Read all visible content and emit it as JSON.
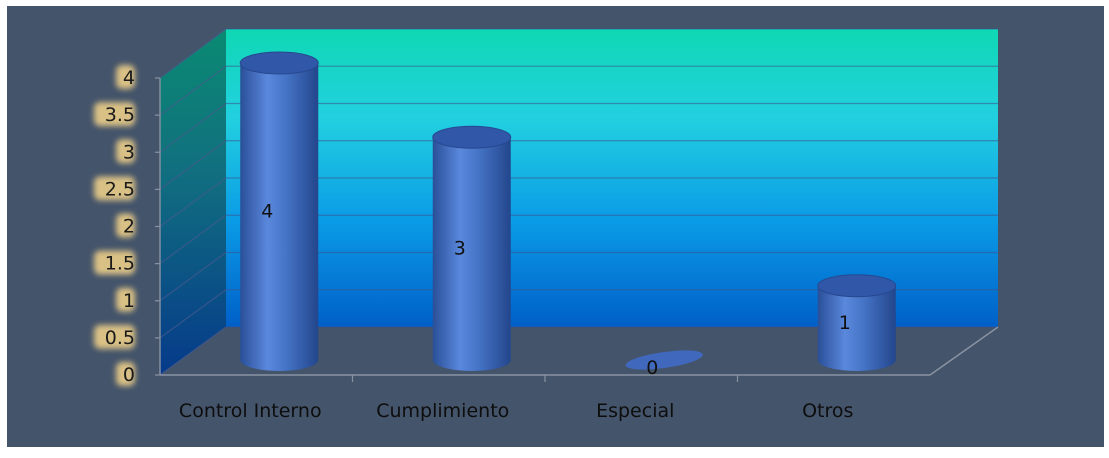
{
  "chart_data": {
    "type": "bar",
    "style": "3d-cylinder",
    "categories": [
      "Control Interno",
      "Cumplimiento",
      "Especial",
      "Otros"
    ],
    "values": [
      4,
      3,
      0,
      1
    ],
    "data_labels": [
      "4",
      "3",
      "0",
      "1"
    ],
    "ylim": [
      0,
      4
    ],
    "yticks": [
      "0",
      "0.5",
      "1",
      "1.5",
      "2",
      "2.5",
      "3",
      "3.5",
      "4"
    ],
    "grid": true,
    "legend": "none",
    "colors": {
      "page_background": "#44546a",
      "bar": "#4472c4",
      "back_wall_top": "#0fd8b4",
      "back_wall_bottom": "#0060c8",
      "tick_label_glow": "#f4d48a"
    }
  }
}
